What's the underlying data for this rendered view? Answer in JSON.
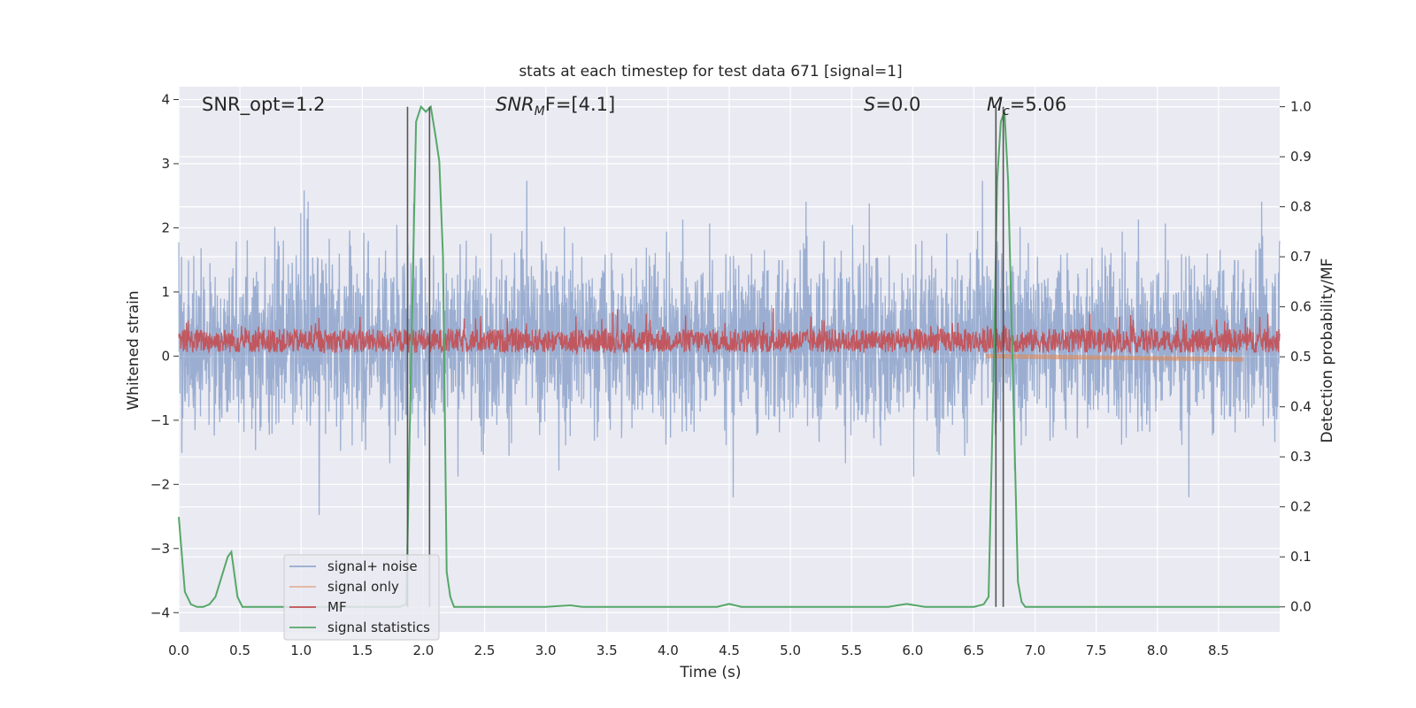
{
  "chart_data": {
    "type": "line",
    "title": "stats at each timestep for test data 671 [signal=1]",
    "xlabel": "Time (s)",
    "ylabel": "Whitened strain",
    "ylabel_right": "Detection probability/MF",
    "xlim": [
      0.0,
      9.0
    ],
    "ylim": [
      -4.3,
      4.2
    ],
    "ylim_right": [
      -0.05,
      1.04
    ],
    "x_ticks": [
      "0.0",
      "0.5",
      "1.0",
      "1.5",
      "2.0",
      "2.5",
      "3.0",
      "3.5",
      "4.0",
      "4.5",
      "5.0",
      "5.5",
      "6.0",
      "6.5",
      "7.0",
      "7.5",
      "8.0",
      "8.5"
    ],
    "y_ticks_left": [
      "−4",
      "−3",
      "−2",
      "−1",
      "0",
      "1",
      "2",
      "3",
      "4"
    ],
    "y_ticks_right": [
      "0.0",
      "0.1",
      "0.2",
      "0.3",
      "0.4",
      "0.5",
      "0.6",
      "0.7",
      "0.8",
      "0.9",
      "1.0"
    ],
    "grid": true,
    "legend_position": "bottom-left",
    "annotations": {
      "snr_opt": "SNR_opt=1.2",
      "snr_mf_main": "SNR",
      "snr_mf_sub": "M",
      "snr_mf_tail": "F=[4.1]",
      "s_var": "S",
      "s_val": "=0.0",
      "mc_var": "M",
      "mc_sub": "c",
      "mc_val": "=5.06"
    },
    "colors": {
      "signal_noise": "#4c72b0",
      "signal_only": "#dd8452",
      "mf": "#c44e52",
      "stat": "#55a868",
      "vline": "#555555",
      "plot_bg": "#eaeaf2"
    },
    "series": [
      {
        "name": "signal+ noise",
        "axis": "left",
        "description_range": [
          -4.0,
          4.0
        ],
        "envelope_typical": [
          -1.7,
          2.3
        ]
      },
      {
        "name": "signal only",
        "axis": "left",
        "x": [
          6.6,
          8.7
        ],
        "y": [
          0.0,
          -0.05
        ]
      },
      {
        "name": "MF",
        "axis": "left",
        "band": [
          0.05,
          0.55
        ]
      },
      {
        "name": "signal statistics",
        "axis": "right",
        "x": [
          0.0,
          0.05,
          0.1,
          0.15,
          0.2,
          0.25,
          0.3,
          0.35,
          0.4,
          0.43,
          0.48,
          0.52,
          0.6,
          1.0,
          1.5,
          1.8,
          1.86,
          1.9,
          1.94,
          1.98,
          2.02,
          2.06,
          2.1,
          2.13,
          2.16,
          2.19,
          2.22,
          2.25,
          2.3,
          3.0,
          3.2,
          3.3,
          4.0,
          4.4,
          4.5,
          4.6,
          5.0,
          5.8,
          5.95,
          6.1,
          6.5,
          6.58,
          6.62,
          6.66,
          6.69,
          6.72,
          6.75,
          6.78,
          6.82,
          6.86,
          6.89,
          6.92,
          7.0,
          8.9,
          9.0
        ],
        "y": [
          0.18,
          0.03,
          0.005,
          0.0,
          0.0,
          0.005,
          0.02,
          0.06,
          0.1,
          0.11,
          0.02,
          0.0,
          0.0,
          0.0,
          0.0,
          0.0,
          0.005,
          0.5,
          0.97,
          1.0,
          0.99,
          1.0,
          0.94,
          0.89,
          0.7,
          0.07,
          0.02,
          0.0,
          0.0,
          0.0,
          0.003,
          0.0,
          0.0,
          0.0,
          0.006,
          0.0,
          0.0,
          0.0,
          0.006,
          0.0,
          0.0,
          0.005,
          0.02,
          0.45,
          0.85,
          0.97,
          0.99,
          0.85,
          0.45,
          0.05,
          0.01,
          0.0,
          0.0,
          0.0,
          0.0
        ]
      }
    ],
    "vertical_lines_x": [
      1.87,
      2.05,
      6.68,
      6.74
    ]
  },
  "legend": {
    "items": [
      {
        "label": "signal+ noise"
      },
      {
        "label": "signal only"
      },
      {
        "label": "MF"
      },
      {
        "label": "signal statistics"
      }
    ]
  }
}
